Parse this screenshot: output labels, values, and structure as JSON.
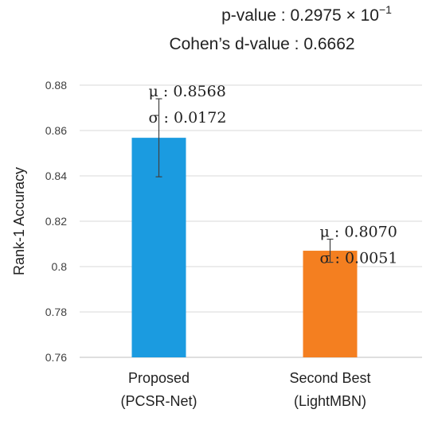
{
  "header": {
    "pvalue_prefix": "p-value : 0.2975 × 10",
    "pvalue_exp": "−1",
    "cohen": "Cohen’s d-value : 0.6662"
  },
  "chart_data": {
    "type": "bar",
    "ylabel": "Rank-1 Accuracy",
    "ylim": [
      0.76,
      0.88
    ],
    "yticks": [
      0.76,
      0.78,
      0.8,
      0.82,
      0.84,
      0.86,
      0.88
    ],
    "ytick_labels": [
      "0.76",
      "0.78",
      "0.8",
      "0.82",
      "0.84",
      "0.86",
      "0.88"
    ],
    "grid": true,
    "categories": [
      {
        "line1": "Proposed",
        "line2": "(PCSR-Net)"
      },
      {
        "line1": "Second Best",
        "line2": "(LightMBN)"
      }
    ],
    "values": [
      0.8568,
      0.807
    ],
    "errors": [
      0.0172,
      0.0051
    ],
    "colors": [
      "#1b9be0",
      "#f47f20"
    ],
    "annotations": [
      {
        "mu": "μ : 0.8568",
        "sigma": "σ : 0.0172"
      },
      {
        "mu": "μ : 0.8070",
        "sigma": "σ : 0.0051"
      }
    ]
  }
}
